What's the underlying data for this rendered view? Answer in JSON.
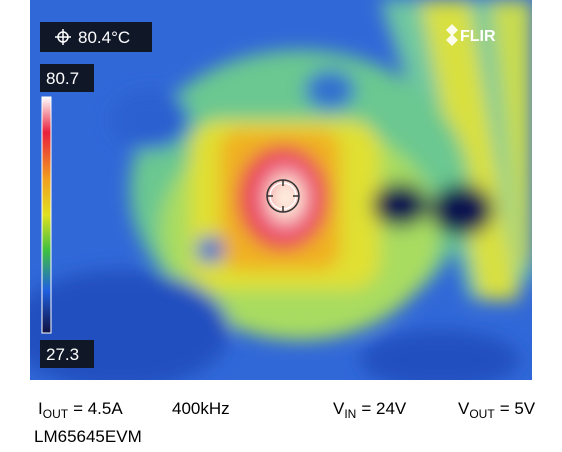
{
  "spot_reading": "80.4°C",
  "scale": {
    "max": "80.7",
    "min": "27.3"
  },
  "brand": "FLIR",
  "captions": {
    "i_out": {
      "symbol": "I",
      "subscript": "OUT",
      "value": "= 4.5A"
    },
    "frequency": "400kHz",
    "v_in": {
      "symbol": "V",
      "subscript": "IN",
      "value": "= 24V"
    },
    "v_out": {
      "symbol": "V",
      "subscript": "OUT",
      "value": "= 5V"
    },
    "board": "LM65645EVM"
  }
}
